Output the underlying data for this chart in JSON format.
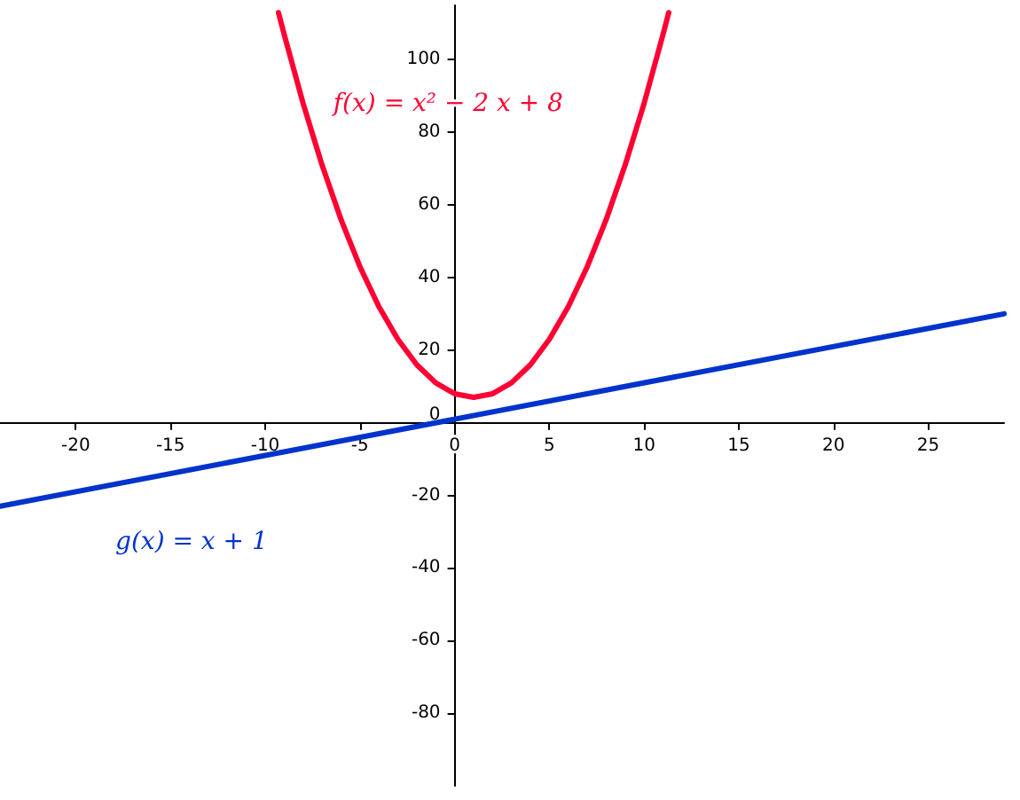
{
  "chart_data": {
    "type": "line",
    "xlim": [
      -24,
      29
    ],
    "ylim": [
      -100,
      115
    ],
    "xticks": [
      -20,
      -15,
      -10,
      -5,
      0,
      5,
      10,
      15,
      20,
      25
    ],
    "yticks": [
      -80,
      -60,
      -40,
      -20,
      0,
      20,
      40,
      60,
      80,
      100
    ],
    "grid": false,
    "legend": false,
    "marker": "none",
    "line_style": "solid",
    "series": [
      {
        "name": "f(x) = x² − 2 x + 8",
        "color": "#ff0033",
        "x": [
          -9.3,
          -9,
          -8,
          -7,
          -6,
          -5,
          -4,
          -3,
          -2,
          -1,
          0,
          1,
          2,
          3,
          4,
          5,
          6,
          7,
          8,
          9,
          10,
          11,
          11.3
        ],
        "values": [
          113,
          107,
          88,
          71,
          56,
          43,
          32,
          23,
          16,
          11,
          8,
          7,
          8,
          11,
          16,
          23,
          32,
          43,
          56,
          71,
          88,
          107,
          113
        ]
      },
      {
        "name": "g(x) = x + 1",
        "color": "#0033cc",
        "x": [
          -24,
          29
        ],
        "values": [
          -23,
          30
        ]
      }
    ]
  }
}
